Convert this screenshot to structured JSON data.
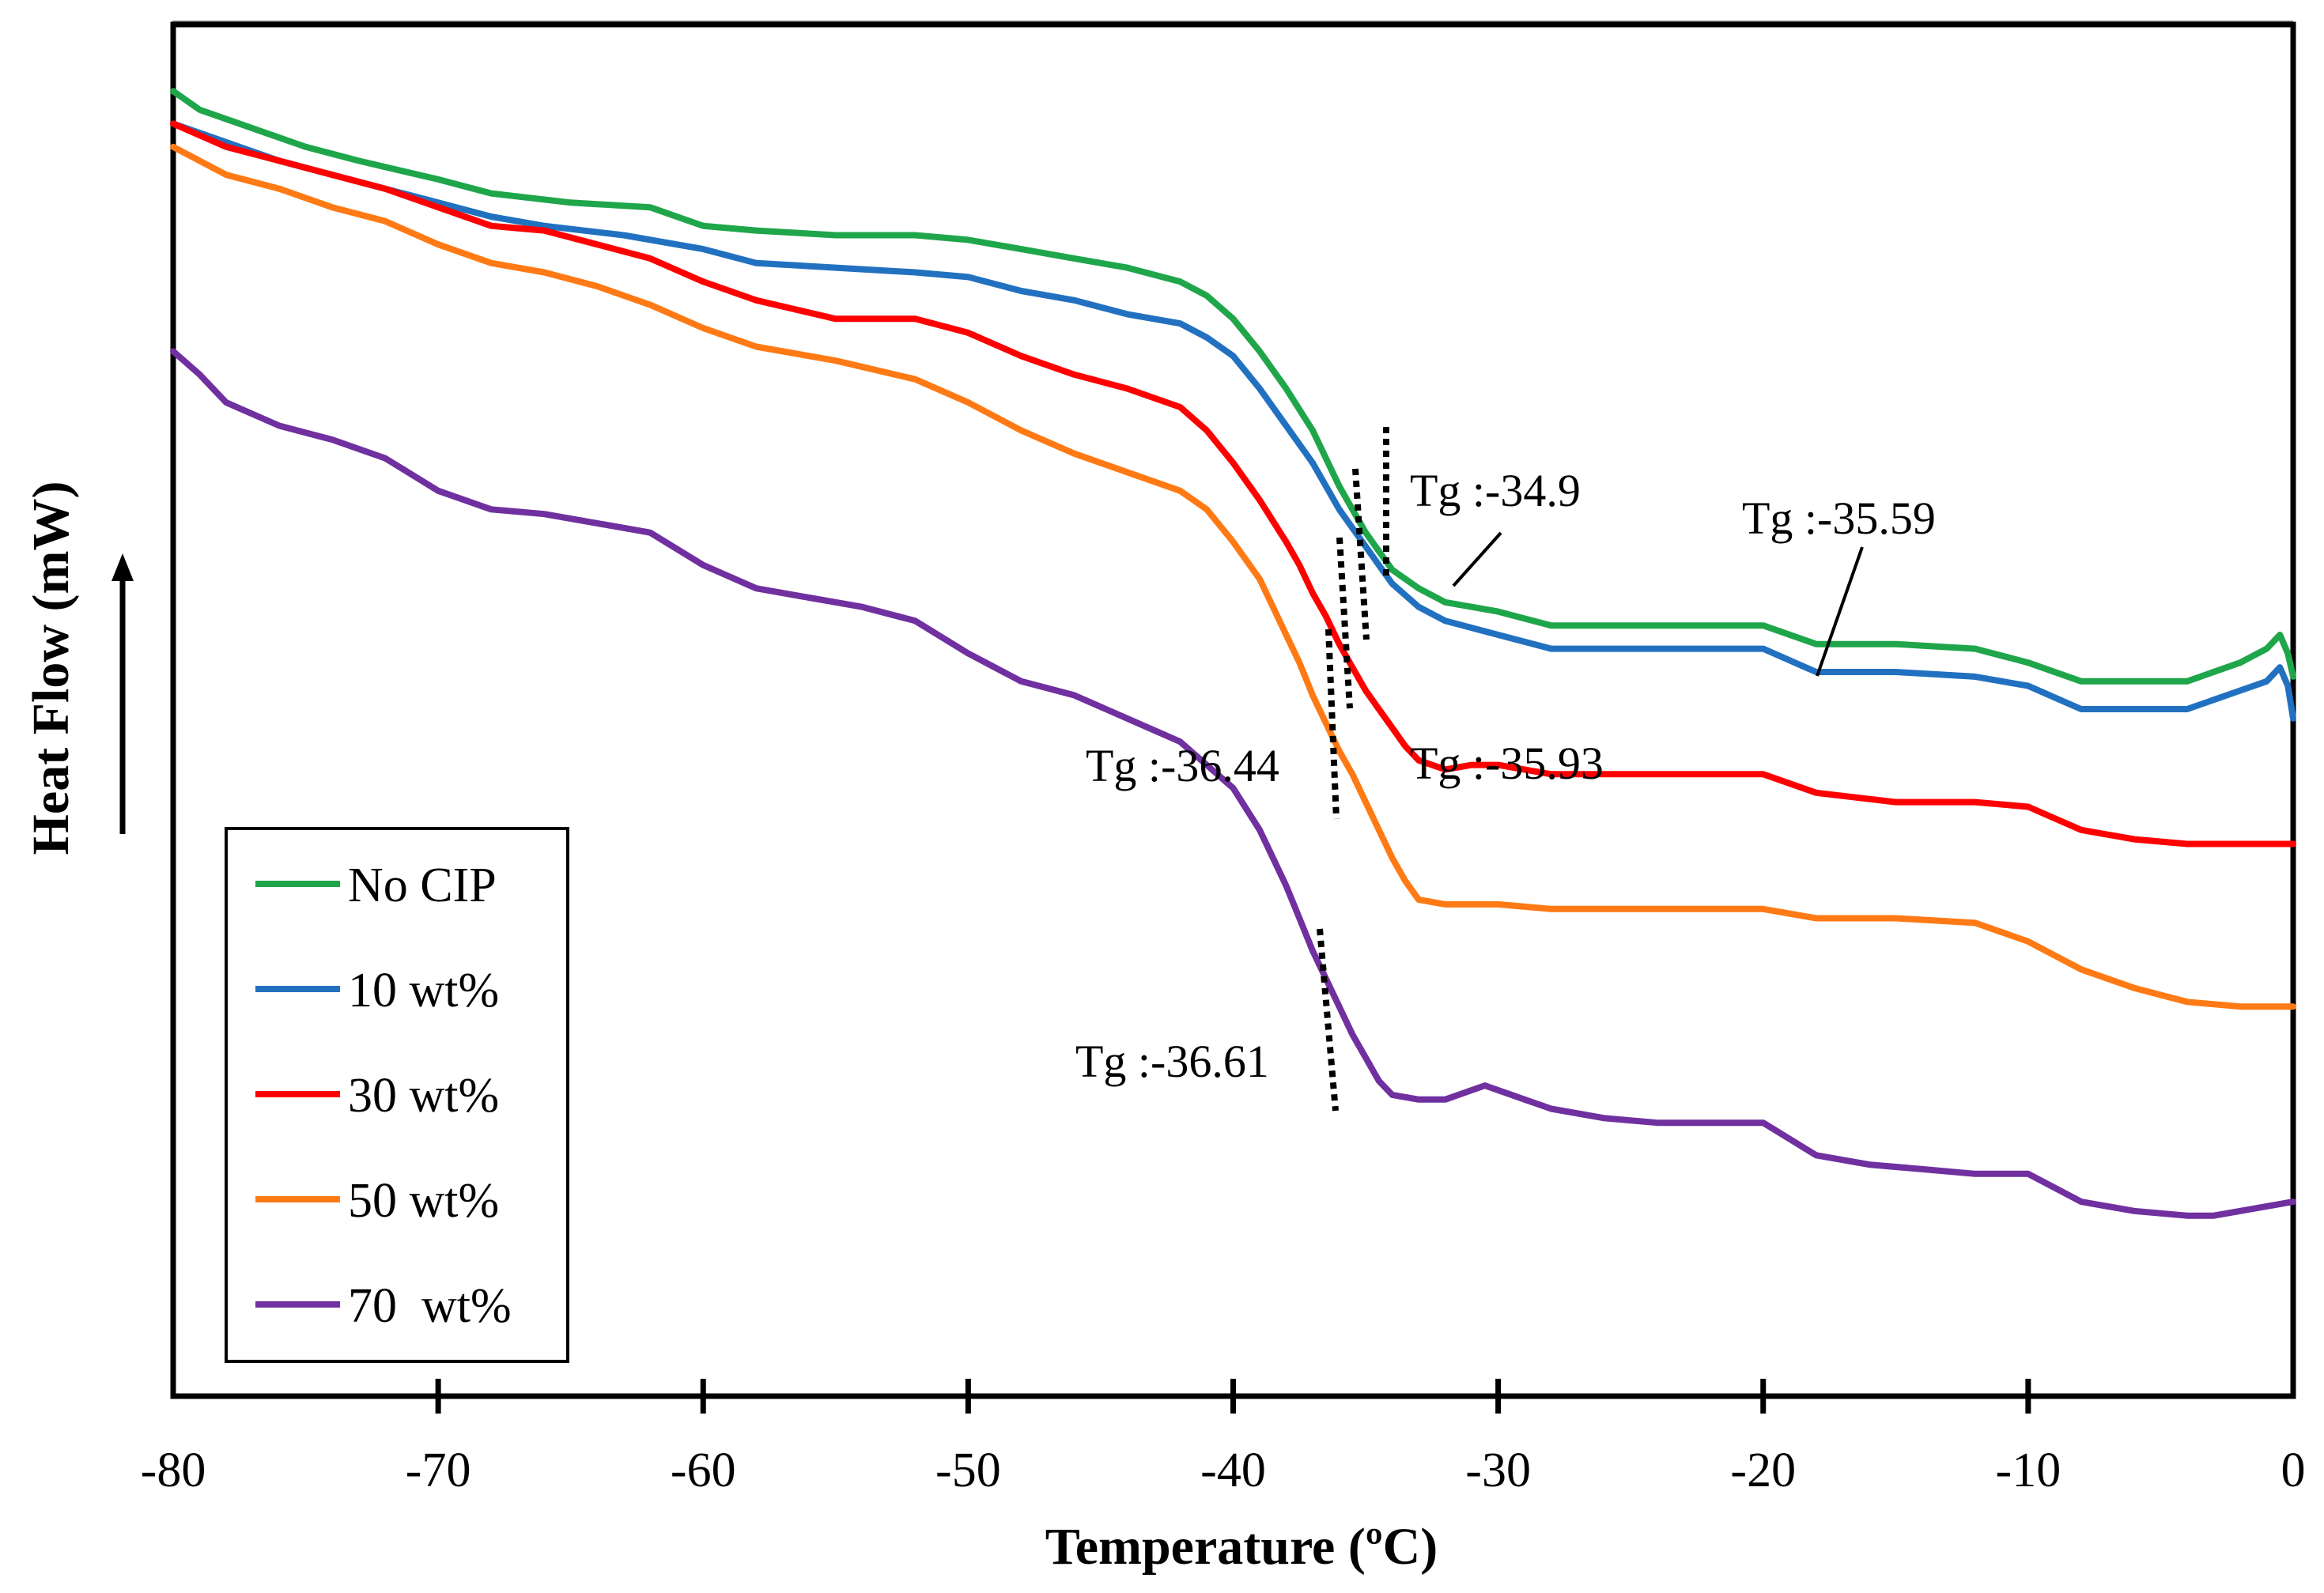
{
  "chart_data": {
    "type": "line",
    "title": "",
    "xlabel": "Temperature (ºC)",
    "ylabel": "Heat Flow (mW)",
    "xlim": [
      -80,
      0
    ],
    "xticks": [
      "-80",
      "-70",
      "-60",
      "-50",
      "-40",
      "-30",
      "-20",
      "-10",
      "0"
    ],
    "yticks_shown": false,
    "grid": false,
    "legend_position": "bottom-left",
    "series": [
      {
        "name": "No CIP",
        "color": "#1fa64a",
        "x": [
          -80,
          -79,
          -77,
          -75,
          -73,
          -70,
          -68,
          -65,
          -62,
          -60,
          -58,
          -55,
          -52,
          -50,
          -48,
          -46,
          -44,
          -42,
          -41,
          -40,
          -39,
          -38,
          -37,
          -36.5,
          -36,
          -35.5,
          -35,
          -34.5,
          -34,
          -33,
          -32,
          -30,
          -28,
          -25,
          -22,
          -20,
          -18,
          -15,
          -12,
          -10,
          -8,
          -6,
          -4,
          -2,
          -1,
          -0.5,
          -0.2,
          0
        ],
        "y": [
          9.4,
          9.2,
          9.0,
          8.8,
          8.65,
          8.45,
          8.3,
          8.2,
          8.15,
          7.95,
          7.9,
          7.85,
          7.85,
          7.8,
          7.7,
          7.6,
          7.5,
          7.35,
          7.2,
          6.95,
          6.6,
          6.2,
          5.75,
          5.45,
          5.15,
          4.9,
          4.65,
          4.45,
          4.25,
          4.05,
          3.9,
          3.8,
          3.65,
          3.65,
          3.65,
          3.65,
          3.45,
          3.45,
          3.4,
          3.25,
          3.05,
          3.05,
          3.05,
          3.25,
          3.4,
          3.55,
          3.35,
          3.1
        ]
      },
      {
        "name": "10 wt%",
        "color": "#2271c0",
        "x": [
          -80,
          -78,
          -76,
          -74,
          -72,
          -70,
          -68,
          -66,
          -63,
          -60,
          -58,
          -55,
          -52,
          -50,
          -48,
          -46,
          -44,
          -42,
          -41,
          -40,
          -39,
          -38,
          -37,
          -36.5,
          -36,
          -35.5,
          -35,
          -34.5,
          -34,
          -33,
          -32,
          -30,
          -28,
          -25,
          -22,
          -20,
          -18,
          -15,
          -12,
          -10,
          -8,
          -6,
          -4,
          -2,
          -1,
          -0.5,
          -0.2,
          0
        ],
        "y": [
          9.05,
          8.85,
          8.65,
          8.5,
          8.35,
          8.2,
          8.05,
          7.95,
          7.85,
          7.7,
          7.55,
          7.5,
          7.45,
          7.4,
          7.25,
          7.15,
          7.0,
          6.9,
          6.75,
          6.55,
          6.2,
          5.8,
          5.4,
          5.15,
          4.9,
          4.7,
          4.5,
          4.3,
          4.1,
          3.85,
          3.7,
          3.55,
          3.4,
          3.4,
          3.4,
          3.4,
          3.15,
          3.15,
          3.1,
          3.0,
          2.75,
          2.75,
          2.75,
          2.95,
          3.05,
          3.2,
          3.0,
          2.65
        ]
      },
      {
        "name": "30 wt%",
        "color": "#ff0000",
        "x": [
          -80,
          -78,
          -76,
          -74,
          -72,
          -70,
          -68,
          -66,
          -64,
          -62,
          -60,
          -58,
          -55,
          -52,
          -50,
          -48,
          -46,
          -44,
          -42,
          -41,
          -40,
          -39,
          -38,
          -37.5,
          -37,
          -36.5,
          -36,
          -35.5,
          -35,
          -34.5,
          -34,
          -33.5,
          -33,
          -32,
          -31,
          -30,
          -28,
          -25,
          -22,
          -20,
          -18,
          -15,
          -12,
          -10,
          -8,
          -6,
          -4,
          -2,
          0
        ],
        "y": [
          9.05,
          8.8,
          8.65,
          8.5,
          8.35,
          8.15,
          7.95,
          7.9,
          7.75,
          7.6,
          7.35,
          7.15,
          6.95,
          6.95,
          6.8,
          6.55,
          6.35,
          6.2,
          6.0,
          5.75,
          5.4,
          5.0,
          4.55,
          4.3,
          4.0,
          3.75,
          3.45,
          3.2,
          2.95,
          2.75,
          2.55,
          2.35,
          2.2,
          2.1,
          2.15,
          2.15,
          2.05,
          2.05,
          2.05,
          2.05,
          1.85,
          1.75,
          1.75,
          1.7,
          1.45,
          1.35,
          1.3,
          1.3,
          1.3
        ]
      },
      {
        "name": "50 wt%",
        "color": "#ff7a14",
        "x": [
          -80,
          -78,
          -76,
          -74,
          -72,
          -70,
          -68,
          -66,
          -64,
          -62,
          -60,
          -58,
          -55,
          -52,
          -50,
          -48,
          -46,
          -44,
          -42,
          -41,
          -40,
          -39,
          -38.5,
          -38,
          -37.5,
          -37,
          -36.5,
          -36,
          -35.5,
          -35,
          -34.5,
          -34,
          -33.5,
          -33,
          -32,
          -30,
          -28,
          -25,
          -22,
          -20,
          -18,
          -15,
          -12,
          -10,
          -8,
          -6,
          -4,
          -2,
          0
        ],
        "y": [
          8.8,
          8.5,
          8.35,
          8.15,
          8.0,
          7.75,
          7.55,
          7.45,
          7.3,
          7.1,
          6.85,
          6.65,
          6.5,
          6.3,
          6.05,
          5.75,
          5.5,
          5.3,
          5.1,
          4.9,
          4.55,
          4.15,
          3.85,
          3.55,
          3.25,
          2.9,
          2.6,
          2.3,
          2.05,
          1.75,
          1.45,
          1.15,
          0.9,
          0.7,
          0.65,
          0.65,
          0.6,
          0.6,
          0.6,
          0.6,
          0.5,
          0.5,
          0.45,
          0.25,
          -0.05,
          -0.25,
          -0.4,
          -0.45,
          -0.45
        ]
      },
      {
        "name": "70  wt%",
        "color": "#7030a0",
        "x": [
          -80,
          -79,
          -78,
          -76,
          -74,
          -72,
          -70,
          -68,
          -66,
          -64,
          -62,
          -60,
          -58,
          -56,
          -54,
          -52,
          -50,
          -48,
          -46,
          -44,
          -42,
          -41,
          -40,
          -39,
          -38.5,
          -38,
          -37.5,
          -37,
          -36.5,
          -36,
          -35.5,
          -35,
          -34.5,
          -34,
          -33,
          -32,
          -31,
          -30.5,
          -30,
          -29,
          -28,
          -26,
          -24,
          -22,
          -20,
          -18,
          -16,
          -14,
          -12,
          -10,
          -8,
          -6,
          -4,
          -3,
          -2,
          0
        ],
        "y": [
          6.6,
          6.35,
          6.05,
          5.8,
          5.65,
          5.45,
          5.1,
          4.9,
          4.85,
          4.75,
          4.65,
          4.3,
          4.05,
          3.95,
          3.85,
          3.7,
          3.35,
          3.05,
          2.9,
          2.65,
          2.4,
          2.15,
          1.9,
          1.45,
          1.15,
          0.85,
          0.5,
          0.15,
          -0.15,
          -0.45,
          -0.75,
          -1.0,
          -1.25,
          -1.4,
          -1.45,
          -1.45,
          -1.35,
          -1.3,
          -1.35,
          -1.45,
          -1.55,
          -1.65,
          -1.7,
          -1.7,
          -1.7,
          -2.05,
          -2.15,
          -2.2,
          -2.25,
          -2.25,
          -2.55,
          -2.65,
          -2.7,
          -2.7,
          -2.65,
          -2.55
        ]
      }
    ],
    "annotations": [
      {
        "text": "Tg :-34.9",
        "x": -34.9,
        "series": "No CIP"
      },
      {
        "text": "Tg :-35.59",
        "x": -35.59,
        "series": "10 wt%"
      },
      {
        "text": "Tg :-35.93",
        "x": -35.93,
        "series": "30 wt%"
      },
      {
        "text": "Tg :-36.44",
        "x": -36.44,
        "series": "50 wt%"
      },
      {
        "text": "Tg :-36.61",
        "x": -36.61,
        "series": "70  wt%"
      }
    ]
  }
}
